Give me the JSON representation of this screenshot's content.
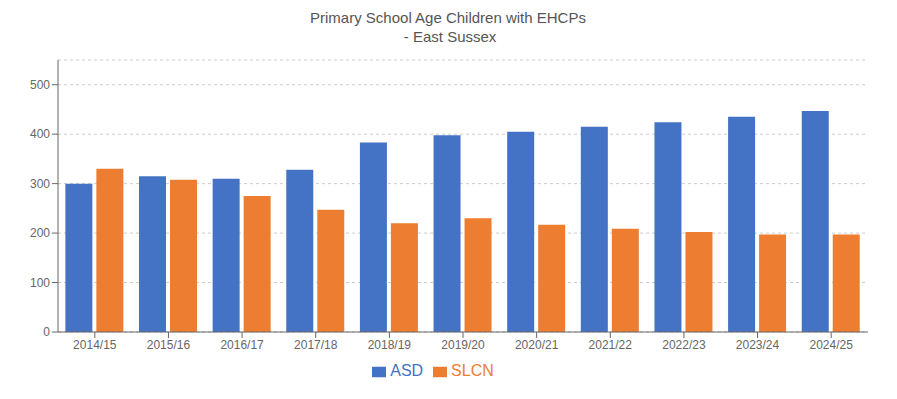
{
  "chart_data": {
    "type": "bar",
    "title": "Primary School Age Children with EHCPs\n - East Sussex",
    "categories": [
      "2014/15",
      "2015/16",
      "2016/17",
      "2017/18",
      "2018/19",
      "2019/20",
      "2020/21",
      "2021/22",
      "2022/23",
      "2023/24",
      "2024/25"
    ],
    "series": [
      {
        "name": "ASD",
        "color": "#4472C4",
        "values": [
          300,
          315,
          310,
          328,
          383,
          398,
          405,
          415,
          424,
          435,
          447
        ]
      },
      {
        "name": "SLCN",
        "color": "#ED7D31",
        "values": [
          330,
          308,
          275,
          247,
          220,
          230,
          217,
          209,
          202,
          197,
          197
        ]
      }
    ],
    "ylim": [
      0,
      550
    ],
    "yticks": [
      0,
      100,
      200,
      300,
      400,
      500
    ],
    "grid": true,
    "legend": "bottom"
  }
}
